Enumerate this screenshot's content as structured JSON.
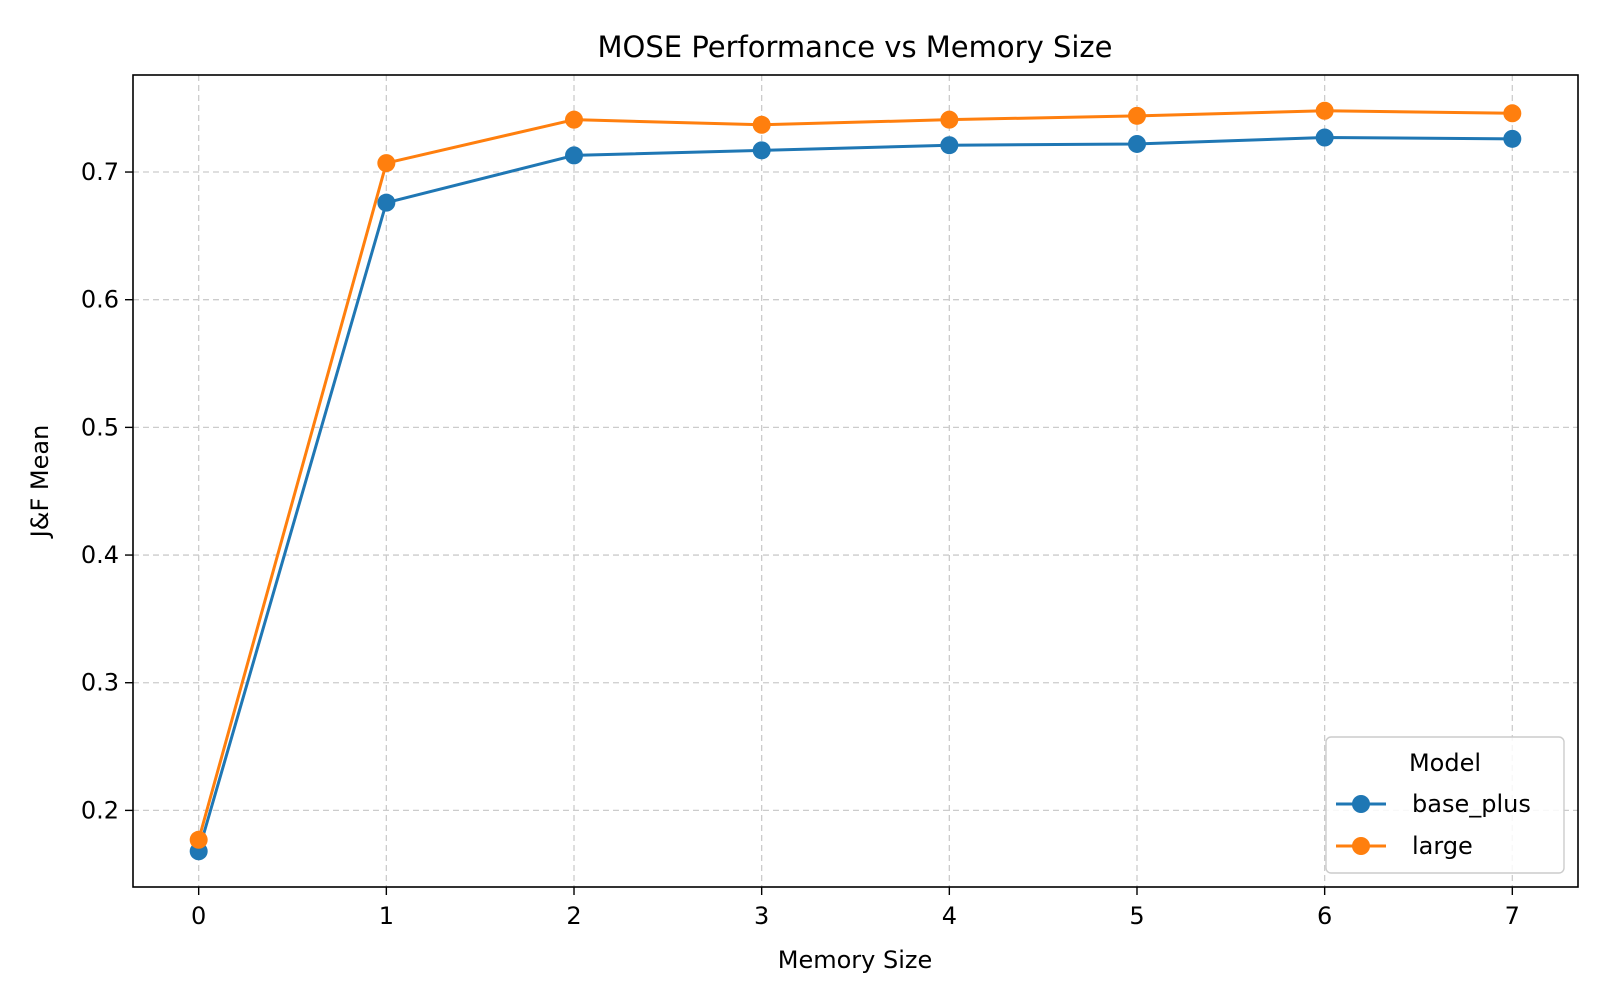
{
  "colors": {
    "base_plus": "#1f77b4",
    "large": "#ff7f0e"
  },
  "chart_data": {
    "type": "line",
    "title": "MOSE Performance vs Memory Size",
    "xlabel": "Memory Size",
    "ylabel": "J&F Mean",
    "x": [
      0,
      1,
      2,
      3,
      4,
      5,
      6,
      7
    ],
    "xticks": [
      "0",
      "1",
      "2",
      "3",
      "4",
      "5",
      "6",
      "7"
    ],
    "yticks": [
      "0.2",
      "0.3",
      "0.4",
      "0.5",
      "0.6",
      "0.7"
    ],
    "ylim": [
      0.14,
      0.776
    ],
    "xlim": [
      -0.35,
      7.35
    ],
    "grid": true,
    "legend": {
      "title": "Model",
      "placement": "lower right"
    },
    "series": [
      {
        "name": "base_plus",
        "color": "#1f77b4",
        "marker": "circle",
        "values": [
          0.168,
          0.676,
          0.713,
          0.717,
          0.721,
          0.722,
          0.727,
          0.726
        ]
      },
      {
        "name": "large",
        "color": "#ff7f0e",
        "marker": "circle",
        "values": [
          0.177,
          0.707,
          0.741,
          0.737,
          0.741,
          0.744,
          0.748,
          0.746
        ]
      }
    ]
  }
}
